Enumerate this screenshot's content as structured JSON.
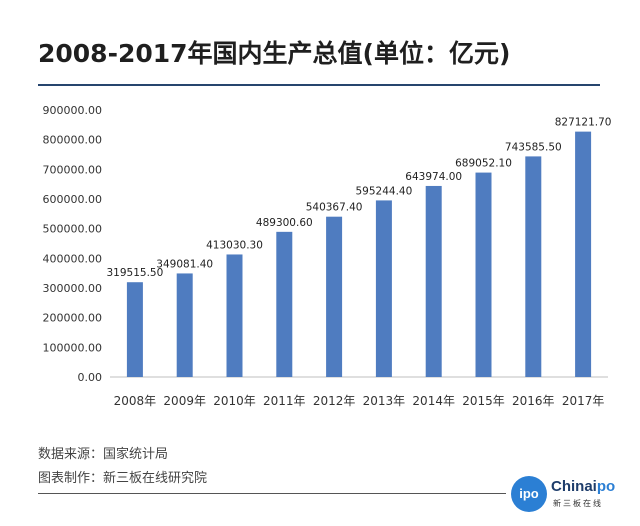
{
  "title": "2008-2017年国内生产总值(单位：亿元)",
  "footer": {
    "source": "数据来源：国家统计局",
    "made_by": "图表制作：新三板在线研究院"
  },
  "logo": {
    "brand_prefix": "Chinai",
    "brand_suffix": "po",
    "circle_text": "ipo",
    "subtitle": "新三板在线"
  },
  "colors": {
    "bar": "#4f7cc0",
    "title_rule": "#26456e",
    "logo_blue": "#2b7fd4"
  },
  "chart_data": {
    "type": "bar",
    "title": "2008-2017年国内生产总值(单位：亿元)",
    "xlabel": "",
    "ylabel": "",
    "categories": [
      "2008年",
      "2009年",
      "2010年",
      "2011年",
      "2012年",
      "2013年",
      "2014年",
      "2015年",
      "2016年",
      "2017年"
    ],
    "values": [
      319515.5,
      349081.4,
      413030.3,
      489300.6,
      540367.4,
      595244.4,
      643974.0,
      689052.1,
      743585.5,
      827121.7
    ],
    "value_labels": [
      "319515.50",
      "349081.40",
      "413030.30",
      "489300.60",
      "540367.40",
      "595244.40",
      "643974.00",
      "689052.10",
      "743585.50",
      "827121.70"
    ],
    "ylim": [
      0,
      900000
    ],
    "yticks": [
      0,
      100000,
      200000,
      300000,
      400000,
      500000,
      600000,
      700000,
      800000,
      900000
    ],
    "ytick_labels": [
      "0.00",
      "100000.00",
      "200000.00",
      "300000.00",
      "400000.00",
      "500000.00",
      "600000.00",
      "700000.00",
      "800000.00",
      "900000.00"
    ],
    "grid": false,
    "legend": "none"
  }
}
